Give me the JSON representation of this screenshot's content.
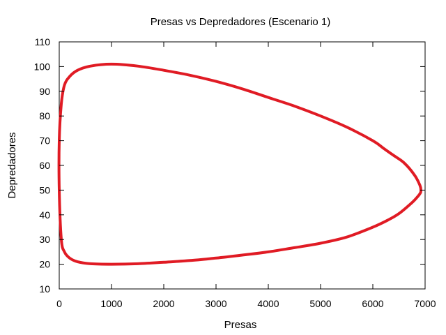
{
  "chart_data": {
    "type": "line",
    "title": "Presas vs Depredadores (Escenario 1)",
    "xlabel": "Presas",
    "ylabel": "Depredadores",
    "xlim": [
      0,
      7000
    ],
    "ylim": [
      10,
      110
    ],
    "xticks": [
      0,
      1000,
      2000,
      3000,
      4000,
      5000,
      6000,
      7000
    ],
    "yticks": [
      10,
      20,
      30,
      40,
      50,
      60,
      70,
      80,
      90,
      100,
      110
    ],
    "grid": false,
    "legend": "none",
    "series": [
      {
        "color": "#e01b24",
        "x": [
          0,
          40,
          100,
          200,
          350,
          600,
          1000,
          1500,
          2000,
          2500,
          3000,
          3500,
          4000,
          4500,
          5000,
          5500,
          6000,
          6300,
          6500,
          6700,
          6800,
          6900,
          6920,
          6900,
          6800,
          6600,
          6400,
          6200,
          6000,
          5500,
          5000,
          4500,
          4000,
          3500,
          3000,
          2500,
          2000,
          1500,
          1000,
          600,
          350,
          200,
          100,
          40,
          0
        ],
        "y": [
          50,
          30,
          25,
          22.5,
          21,
          20.2,
          20,
          20.2,
          20.8,
          21.5,
          22.5,
          23.7,
          25,
          26.7,
          28.5,
          31,
          35,
          38,
          40.5,
          44,
          46,
          48.5,
          50,
          52,
          56,
          61,
          64,
          67,
          70,
          75.5,
          80,
          84,
          87.5,
          91,
          94,
          96.5,
          98.5,
          100.2,
          101,
          100.2,
          98.5,
          96,
          92.5,
          85,
          70
        ]
      }
    ]
  }
}
